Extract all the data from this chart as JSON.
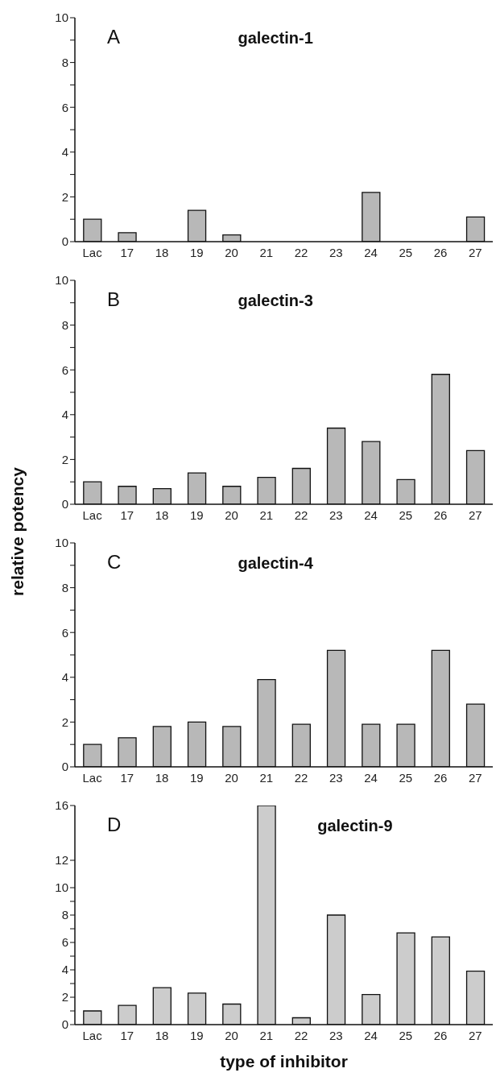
{
  "chart_data": [
    {
      "type": "bar",
      "title": "galectin-1",
      "annotations": [
        "A"
      ],
      "categories": [
        "Lac",
        "17",
        "18",
        "19",
        "20",
        "21",
        "22",
        "23",
        "24",
        "25",
        "26",
        "27"
      ],
      "values": [
        1.0,
        0.4,
        null,
        1.4,
        0.3,
        null,
        null,
        null,
        2.2,
        null,
        null,
        1.1
      ],
      "color": "#b8b8b8",
      "ylim": [
        0,
        10
      ],
      "yticks": [
        0,
        {
          "value": 1,
          "label": null
        },
        2,
        {
          "value": 3,
          "label": null
        },
        4,
        {
          "value": 5,
          "label": null
        },
        6,
        {
          "value": 7,
          "label": null
        },
        8,
        {
          "value": 9,
          "label": null
        },
        10
      ]
    },
    {
      "type": "bar",
      "title": "galectin-3",
      "annotations": [
        "B"
      ],
      "ylabel": "relative potency",
      "categories": [
        "Lac",
        "17",
        "18",
        "19",
        "20",
        "21",
        "22",
        "23",
        "24",
        "25",
        "26",
        "27"
      ],
      "values": [
        1.0,
        0.8,
        0.7,
        1.4,
        0.8,
        1.2,
        1.6,
        3.4,
        2.8,
        1.1,
        5.8,
        2.4
      ],
      "color": "#b8b8b8",
      "ylim": [
        0,
        10
      ],
      "yticks": [
        0,
        {
          "value": 1,
          "label": null
        },
        2,
        {
          "value": 3,
          "label": null
        },
        4,
        {
          "value": 5,
          "label": null
        },
        6,
        {
          "value": 7,
          "label": null
        },
        8,
        {
          "value": 9,
          "label": null
        },
        10
      ]
    },
    {
      "type": "bar",
      "title": "galectin-4",
      "annotations": [
        "C"
      ],
      "categories": [
        "Lac",
        "17",
        "18",
        "19",
        "20",
        "21",
        "22",
        "23",
        "24",
        "25",
        "26",
        "27"
      ],
      "values": [
        1.0,
        1.3,
        1.8,
        2.0,
        1.8,
        3.9,
        1.9,
        5.2,
        1.9,
        1.9,
        5.2,
        2.8
      ],
      "color": "#b8b8b8",
      "ylim": [
        0,
        10
      ],
      "yticks": [
        0,
        {
          "value": 1,
          "label": null
        },
        2,
        {
          "value": 3,
          "label": null
        },
        4,
        {
          "value": 5,
          "label": null
        },
        6,
        {
          "value": 7,
          "label": null
        },
        8,
        {
          "value": 9,
          "label": null
        },
        10
      ]
    },
    {
      "type": "bar",
      "title": "galectin-9",
      "annotations": [
        "D"
      ],
      "xlabel": "type of inhibitor",
      "categories": [
        "Lac",
        "17",
        "18",
        "19",
        "20",
        "21",
        "22",
        "23",
        "24",
        "25",
        "26",
        "27"
      ],
      "values": [
        1.0,
        1.4,
        2.7,
        2.3,
        1.5,
        16,
        0.5,
        8.0,
        2.2,
        6.7,
        6.4,
        3.9
      ],
      "color": "#cccccc",
      "ylim": [
        0,
        16
      ],
      "yticks": [
        0,
        {
          "value": 1,
          "label": null
        },
        2,
        {
          "value": 3,
          "label": null
        },
        4,
        {
          "value": 5,
          "label": null
        },
        6,
        {
          "value": 7,
          "label": null
        },
        8,
        {
          "value": 9,
          "label": null
        },
        10,
        12,
        16
      ]
    }
  ]
}
